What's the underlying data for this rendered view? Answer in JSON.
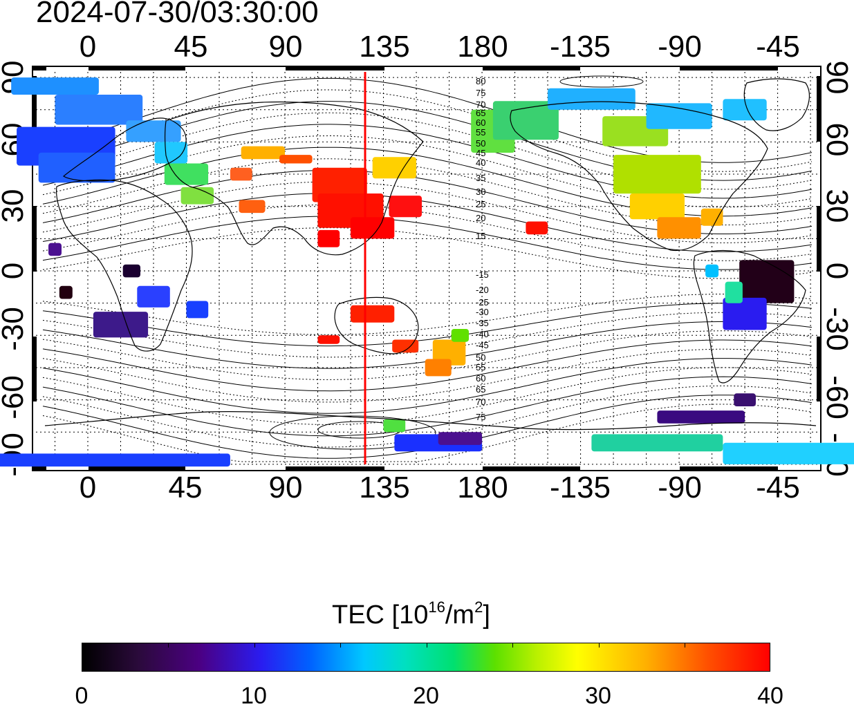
{
  "title": "2024-07-30/03:30:00",
  "top_ticks": [
    "0",
    "45",
    "90",
    "135",
    "180",
    "-135",
    "-90",
    "-45"
  ],
  "bottom_ticks": [
    "0",
    "45",
    "90",
    "135",
    "180",
    "-135",
    "-90",
    "-45"
  ],
  "left_ticks": [
    "90",
    "60",
    "30",
    "0",
    "-30",
    "-60",
    "-90"
  ],
  "right_ticks": [
    "90",
    "60",
    "30",
    "0",
    "-30",
    "-60",
    "-90"
  ],
  "contour_labels_north": [
    "80",
    "75",
    "70",
    "65",
    "60",
    "55",
    "50",
    "45",
    "40",
    "35",
    "30",
    "25",
    "20",
    "15"
  ],
  "contour_labels_south": [
    "-15",
    "-20",
    "-25",
    "-30",
    "-35",
    "-40",
    "-45",
    "50",
    "55",
    "60",
    "65",
    "70",
    "75"
  ],
  "colorbar": {
    "title_main": "TEC  [10",
    "title_sup1": "16",
    "title_mid": "/m",
    "title_sup2": "2",
    "title_end": "]",
    "labels": [
      "0",
      "10",
      "20",
      "30",
      "40"
    ],
    "min": 0,
    "max": 40
  },
  "colors": {
    "meridian_marker": "#ff0000",
    "tec_high": "#ff0000",
    "tec_low": "#1a0020"
  },
  "meridian_longitude": 128
}
